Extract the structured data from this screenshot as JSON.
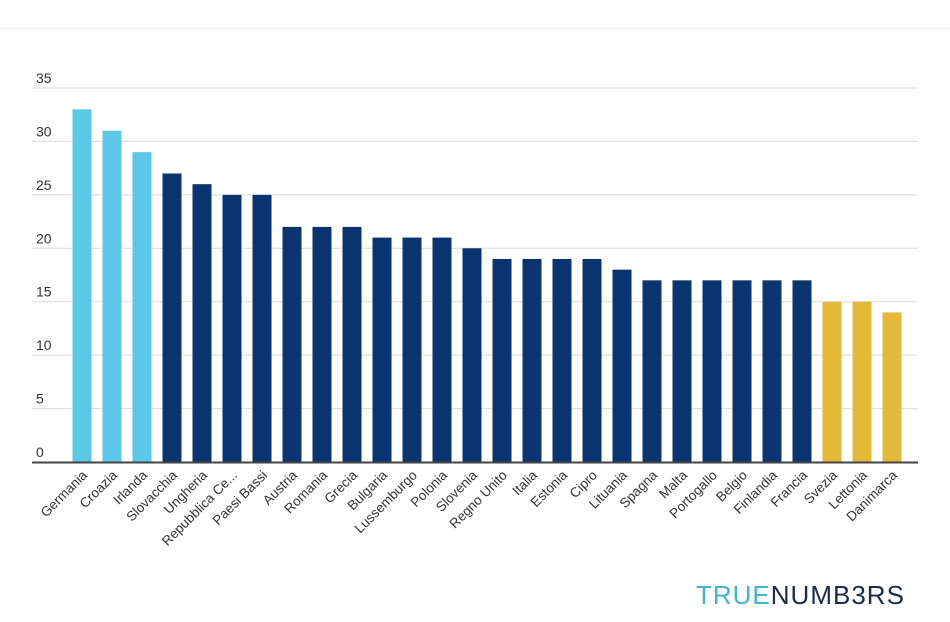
{
  "brand": {
    "part1": "TRUE",
    "part2": "NUMB3RS"
  },
  "colors": {
    "light_blue": "#5bc8e8",
    "navy": "#0a3470",
    "gold": "#e4b93a",
    "grid": "#dcdcdc",
    "axis": "#444444"
  },
  "chart_data": {
    "type": "bar",
    "title": "",
    "xlabel": "",
    "ylabel": "",
    "ylim": [
      0,
      35
    ],
    "yticks": [
      0,
      5,
      10,
      15,
      20,
      25,
      30,
      35
    ],
    "grid": true,
    "categories": [
      "Germania",
      "Croazia",
      "Irlanda",
      "Slovacchia",
      "Ungheria",
      "Repubblica Ce...",
      "Paesi Bassi",
      "Austria",
      "Romania",
      "Grecia",
      "Bulgaria",
      "Lussemburgo",
      "Polonia",
      "Slovenia",
      "Regno Unito",
      "Italia",
      "Estonia",
      "Cipro",
      "Lituania",
      "Spagna",
      "Malta",
      "Portogallo",
      "Belgio",
      "Finlandia",
      "Francia",
      "Svezia",
      "Lettonia",
      "Danimarca"
    ],
    "values": [
      33,
      31,
      29,
      27,
      26,
      25,
      25,
      22,
      22,
      22,
      21,
      21,
      21,
      20,
      19,
      19,
      19,
      19,
      18,
      17,
      17,
      17,
      17,
      17,
      17,
      15,
      15,
      14
    ],
    "bar_colors": [
      "#5bc8e8",
      "#5bc8e8",
      "#5bc8e8",
      "#0a3470",
      "#0a3470",
      "#0a3470",
      "#0a3470",
      "#0a3470",
      "#0a3470",
      "#0a3470",
      "#0a3470",
      "#0a3470",
      "#0a3470",
      "#0a3470",
      "#0a3470",
      "#0a3470",
      "#0a3470",
      "#0a3470",
      "#0a3470",
      "#0a3470",
      "#0a3470",
      "#0a3470",
      "#0a3470",
      "#0a3470",
      "#0a3470",
      "#e4b93a",
      "#e4b93a",
      "#e4b93a"
    ]
  }
}
